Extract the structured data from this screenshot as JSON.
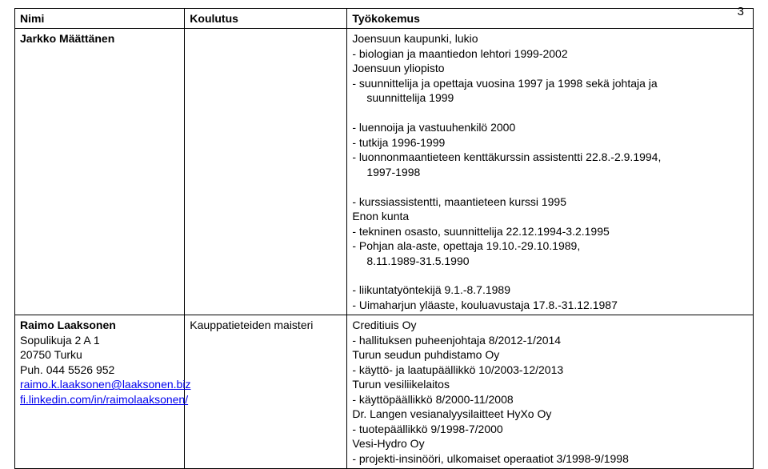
{
  "page_number": "3",
  "headers": {
    "name": "Nimi",
    "education": "Koulutus",
    "experience": "Työkokemus"
  },
  "rows": [
    {
      "name_bold": "Jarkko Määttänen",
      "name_rest_lines": [],
      "name_links": [],
      "education": "",
      "experience": [
        "Joensuun kaupunki, lukio",
        "- biologian ja maantiedon lehtori 1999-2002",
        "Joensuun yliopisto",
        "- suunnittelija ja opettaja vuosina 1997 ja 1998 sekä johtaja ja",
        "  suunnittelija 1999",
        "- luennoija ja vastuuhenkilö 2000",
        "- tutkija 1996-1999",
        "- luonnonmaantieteen kenttäkurssin assistentti 22.8.-2.9.1994,",
        "  1997-1998",
        "- kurssiassistentti, maantieteen kurssi 1995",
        "Enon kunta",
        "- tekninen osasto, suunnittelija 22.12.1994-3.2.1995",
        "- Pohjan ala-aste, opettaja 19.10.-29.10.1989,",
        "  8.11.1989-31.5.1990",
        "- liikuntatyöntekijä 9.1.-8.7.1989",
        "- Uimaharjun yläaste, kouluavustaja 17.8.-31.12.1987"
      ]
    },
    {
      "name_bold": "Raimo Laaksonen",
      "name_rest_lines": [
        "Sopulikuja 2 A 1",
        "20750 Turku",
        "Puh. 044 5526 952"
      ],
      "name_links": [
        "raimo.k.laaksonen@laaksonen.biz",
        "fi.linkedin.com/in/raimolaaksonen/"
      ],
      "education": "Kauppatieteiden maisteri",
      "experience": [
        "Creditiuis Oy",
        "- hallituksen puheenjohtaja 8/2012-1/2014",
        "Turun seudun puhdistamo Oy",
        "- käyttö- ja laatupäällikkö 10/2003-12/2013",
        "Turun vesiliikelaitos",
        "- käyttöpäällikkö 8/2000-11/2008",
        "Dr. Langen vesianalyysilaitteet HyXo Oy",
        "- tuotepäällikkö 9/1998-7/2000",
        "Vesi-Hydro Oy",
        "- projekti-insinööri, ulkomaiset operaatiot 3/1998-9/1998"
      ]
    }
  ],
  "colors": {
    "link": "#0000ee",
    "text": "#000000",
    "border": "#000000",
    "background": "#ffffff"
  },
  "fonts": {
    "body_size_pt": 10,
    "header_weight": "bold"
  }
}
